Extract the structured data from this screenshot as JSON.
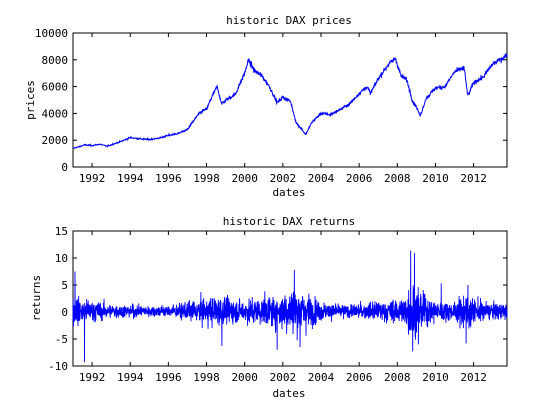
{
  "chart_data": [
    {
      "type": "line",
      "title": "historic DAX prices",
      "xlabel": "dates",
      "ylabel": "prices",
      "xlim": [
        1991.0,
        2013.75
      ],
      "ylim": [
        0,
        10000
      ],
      "x_ticks": [
        1992,
        1994,
        1996,
        1998,
        2000,
        2002,
        2004,
        2006,
        2008,
        2010,
        2012
      ],
      "y_ticks": [
        0,
        2000,
        4000,
        6000,
        8000,
        10000
      ],
      "grid": false,
      "line_color": "#0000ff",
      "series": [
        {
          "x": [
            1991.0,
            1991.3,
            1991.6,
            1992.0,
            1992.4,
            1992.8,
            1993.0,
            1993.5,
            1994.0,
            1994.5,
            1995.0,
            1995.5,
            1996.0,
            1996.5,
            1997.0,
            1997.5,
            1997.8,
            1998.0,
            1998.3,
            1998.55,
            1998.8,
            1999.0,
            1999.5,
            2000.0,
            2000.2,
            2000.5,
            2000.9,
            2001.3,
            2001.7,
            2002.0,
            2002.4,
            2002.7,
            2003.0,
            2003.2,
            2003.5,
            2004.0,
            2004.5,
            2005.0,
            2005.5,
            2006.0,
            2006.4,
            2006.6,
            2007.0,
            2007.5,
            2007.9,
            2008.2,
            2008.5,
            2008.8,
            2009.0,
            2009.2,
            2009.5,
            2010.0,
            2010.5,
            2011.0,
            2011.5,
            2011.7,
            2012.0,
            2012.5,
            2013.0,
            2013.5,
            2013.75
          ],
          "y": [
            1400,
            1500,
            1650,
            1600,
            1700,
            1550,
            1650,
            1900,
            2200,
            2100,
            2050,
            2150,
            2350,
            2500,
            2800,
            3800,
            4200,
            4300,
            5300,
            6000,
            4700,
            5000,
            5400,
            7000,
            8000,
            7200,
            6800,
            6000,
            4800,
            5200,
            4900,
            3300,
            2800,
            2400,
            3300,
            4000,
            3900,
            4300,
            4700,
            5500,
            6000,
            5500,
            6600,
            7600,
            8100,
            6800,
            6500,
            4900,
            4500,
            3800,
            5100,
            5900,
            6000,
            7100,
            7400,
            5300,
            6300,
            6700,
            7700,
            8100,
            8400
          ]
        }
      ]
    },
    {
      "type": "line",
      "title": "historic DAX returns",
      "xlabel": "dates",
      "ylabel": "returns",
      "xlim": [
        1991.0,
        2013.75
      ],
      "ylim": [
        -10,
        15
      ],
      "x_ticks": [
        1992,
        1994,
        1996,
        1998,
        2000,
        2002,
        2004,
        2006,
        2008,
        2010,
        2012
      ],
      "y_ticks": [
        -10,
        -5,
        0,
        5,
        10,
        15
      ],
      "grid": false,
      "line_color": "#0000ff",
      "volatility_profile": {
        "x": [
          1991.0,
          1991.5,
          1993.0,
          1995.0,
          1996.5,
          1997.5,
          1998.5,
          1999.5,
          2000.5,
          2001.5,
          2002.3,
          2002.7,
          2003.2,
          2003.8,
          2004.5,
          2005.5,
          2006.5,
          2007.5,
          2008.3,
          2008.8,
          2009.2,
          2009.6,
          2010.2,
          2011.0,
          2011.6,
          2012.0,
          2012.8,
          2013.75
        ],
        "y": [
          2.0,
          1.8,
          1.0,
          0.8,
          0.9,
          1.6,
          2.2,
          1.6,
          1.8,
          2.2,
          2.9,
          3.3,
          2.8,
          1.5,
          1.1,
          0.9,
          1.2,
          1.5,
          1.9,
          4.0,
          3.0,
          2.0,
          1.4,
          1.2,
          2.8,
          1.8,
          1.2,
          1.1
        ]
      },
      "extremes": [
        {
          "x": 1991.6,
          "y": -9.3
        },
        {
          "x": 1991.1,
          "y": 7.5
        },
        {
          "x": 1998.8,
          "y": -6.3
        },
        {
          "x": 2001.7,
          "y": -7.0
        },
        {
          "x": 2002.6,
          "y": 7.8
        },
        {
          "x": 2002.9,
          "y": -6.5
        },
        {
          "x": 2008.7,
          "y": 11.4
        },
        {
          "x": 2008.8,
          "y": -7.3
        },
        {
          "x": 2008.9,
          "y": 10.9
        },
        {
          "x": 2009.1,
          "y": -6.0
        },
        {
          "x": 2010.3,
          "y": 5.3
        },
        {
          "x": 2011.6,
          "y": -5.8
        },
        {
          "x": 2011.7,
          "y": 5.0
        }
      ]
    }
  ]
}
